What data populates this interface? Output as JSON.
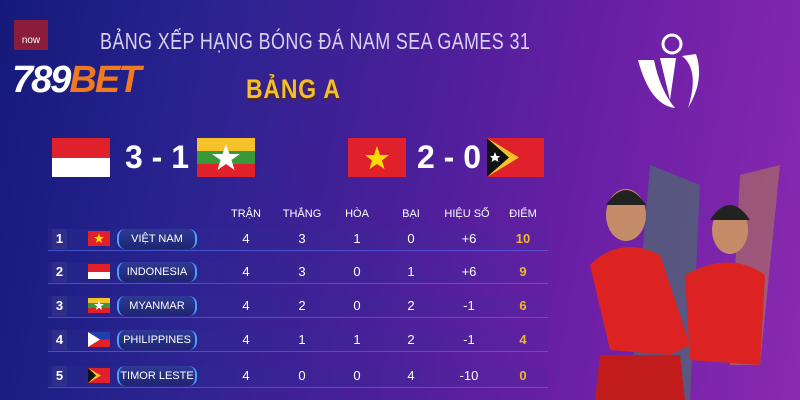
{
  "title": "BẢNG XẾP HẠNG BÓNG ĐÁ NAM SEA GAMES 31",
  "group": "BẢNG A",
  "brand": {
    "number": "789",
    "word": "BET",
    "tv_badge": "now"
  },
  "matches": [
    {
      "home": "Indonesia",
      "away": "Myanmar",
      "score": "3 - 1"
    },
    {
      "home": "Việt Nam",
      "away": "Timor Leste",
      "score": "2 - 0"
    }
  ],
  "table": {
    "headers": [
      "TRẬN",
      "THẮNG",
      "HÒA",
      "BẠI",
      "HIỆU SỐ",
      "ĐIỂM"
    ],
    "rows": [
      {
        "rank": "1",
        "team": "VIỆT NAM",
        "flag": "vietnam",
        "played": "4",
        "won": "3",
        "drawn": "1",
        "lost": "0",
        "gd": "+6",
        "points": "10"
      },
      {
        "rank": "2",
        "team": "INDONESIA",
        "flag": "indonesia",
        "played": "4",
        "won": "3",
        "drawn": "0",
        "lost": "1",
        "gd": "+6",
        "points": "9"
      },
      {
        "rank": "3",
        "team": "MYANMAR",
        "flag": "myanmar",
        "played": "4",
        "won": "2",
        "drawn": "0",
        "lost": "2",
        "gd": "-1",
        "points": "6"
      },
      {
        "rank": "4",
        "team": "PHILIPPINES",
        "flag": "philippines",
        "played": "4",
        "won": "1",
        "drawn": "1",
        "lost": "2",
        "gd": "-1",
        "points": "4"
      },
      {
        "rank": "5",
        "team": "TIMOR LESTE",
        "flag": "timor-leste",
        "played": "4",
        "won": "0",
        "drawn": "0",
        "lost": "4",
        "gd": "-10",
        "points": "0"
      }
    ]
  },
  "colors": {
    "points": "#f2b82c",
    "group_title": "#f2c02c",
    "brand_orange": "#f07a1e"
  }
}
